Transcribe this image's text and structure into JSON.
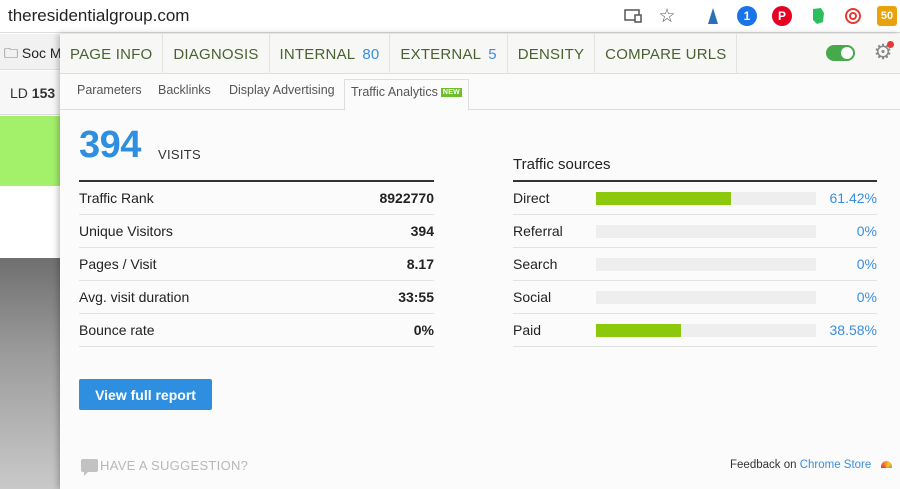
{
  "browser": {
    "url": "theresidentialgroup.com",
    "extensions": [
      {
        "name": "cast-icon"
      },
      {
        "name": "star-icon"
      },
      {
        "name": "pen-icon",
        "color": "#2b6fb6"
      },
      {
        "name": "1password-icon",
        "label": "1",
        "color": "#1a73e8"
      },
      {
        "name": "pinterest-icon",
        "label": "P",
        "color": "#e60023"
      },
      {
        "name": "evernote-icon",
        "color": "#2dbe60"
      },
      {
        "name": "spiral-icon",
        "color": "#e53935"
      },
      {
        "name": "seo-badge-icon",
        "label": "50",
        "color": "#e8a20c"
      }
    ]
  },
  "background": {
    "bookmark_label": "Soc M",
    "ld_label": "LD",
    "ld_value": "153"
  },
  "tabs": {
    "main": [
      {
        "label": "PAGE INFO"
      },
      {
        "label": "DIAGNOSIS"
      },
      {
        "label": "INTERNAL",
        "count": "80"
      },
      {
        "label": "EXTERNAL",
        "count": "5"
      },
      {
        "label": "DENSITY"
      },
      {
        "label": "COMPARE URLS"
      }
    ],
    "sub": [
      {
        "label": "Parameters"
      },
      {
        "label": "Backlinks"
      },
      {
        "label": "Display Advertising"
      },
      {
        "label": "Traffic Analytics",
        "badge": "NEW"
      }
    ]
  },
  "visits": {
    "value": "394",
    "label": "VISITS"
  },
  "stats": [
    {
      "label": "Traffic Rank",
      "value": "8922770"
    },
    {
      "label": "Unique Visitors",
      "value": "394"
    },
    {
      "label": "Pages / Visit",
      "value": "8.17"
    },
    {
      "label": "Avg. visit duration",
      "value": "33:55"
    },
    {
      "label": "Bounce rate",
      "value": "0%"
    }
  ],
  "sources": {
    "title": "Traffic sources",
    "items": [
      {
        "label": "Direct",
        "percent": "61.42%",
        "fraction": 0.6142
      },
      {
        "label": "Referral",
        "percent": "0%",
        "fraction": 0
      },
      {
        "label": "Search",
        "percent": "0%",
        "fraction": 0
      },
      {
        "label": "Social",
        "percent": "0%",
        "fraction": 0
      },
      {
        "label": "Paid",
        "percent": "38.58%",
        "fraction": 0.3858
      }
    ]
  },
  "actions": {
    "view_report": "View full report"
  },
  "footer": {
    "suggestion": "HAVE A SUGGESTION?",
    "feedback_on": "Feedback on",
    "chrome_store": "Chrome Store"
  },
  "colors": {
    "accent_blue": "#2e8fe0",
    "bar_green": "#8cc90c",
    "tab_green": "#4a6131"
  }
}
